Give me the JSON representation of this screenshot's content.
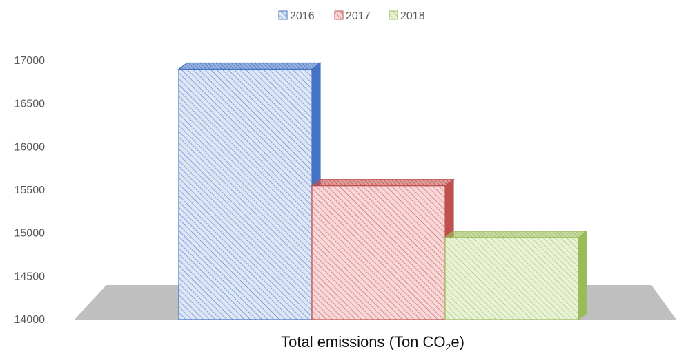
{
  "chart_data": {
    "type": "bar",
    "title": "",
    "xlabel": "Total emissions (Ton CO",
    "xlabel_sub": "2",
    "xlabel_suffix": "e)",
    "ylabel": "",
    "ylim": [
      14000,
      17000
    ],
    "yticks": [
      14000,
      14500,
      15000,
      15500,
      16000,
      16500,
      17000
    ],
    "categories": [
      "Total emissions (Ton CO2e)"
    ],
    "series": [
      {
        "name": "2016",
        "values": [
          16900
        ],
        "color": "#4472C4",
        "fill": "#DCE6F4"
      },
      {
        "name": "2017",
        "values": [
          15550
        ],
        "color": "#C0504D",
        "fill": "#F7D7D7"
      },
      {
        "name": "2018",
        "values": [
          14950
        ],
        "color": "#9BBB59",
        "fill": "#E9F2D7"
      }
    ],
    "legend": {
      "position": "top",
      "items": [
        "2016",
        "2017",
        "2018"
      ]
    },
    "grid": false,
    "style": "3d-hatched"
  }
}
